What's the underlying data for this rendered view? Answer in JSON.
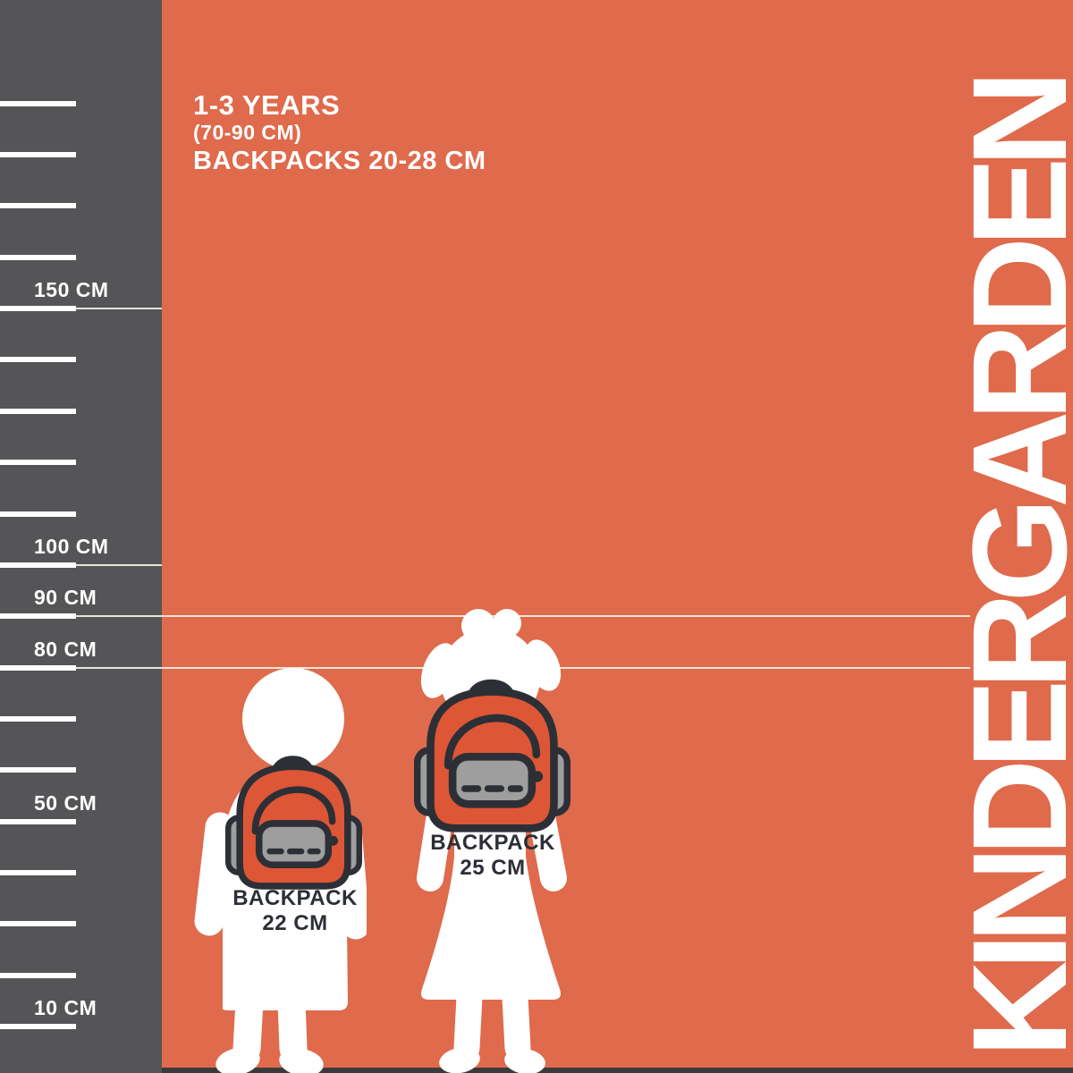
{
  "title": "KINDERGARDEN",
  "header": {
    "age_range": "1-3 YEARS",
    "height_range": "(70-90 CM)",
    "backpack_size_range": "BACKPACKS 20-28 CM"
  },
  "ruler": {
    "unit": "CM",
    "ticks": [
      {
        "value": 190,
        "label": "",
        "line": "none"
      },
      {
        "value": 180,
        "label": "",
        "line": "none"
      },
      {
        "value": 170,
        "label": "",
        "line": "none"
      },
      {
        "value": 160,
        "label": "",
        "line": "none"
      },
      {
        "value": 150,
        "label": "150 CM",
        "line": "short"
      },
      {
        "value": 140,
        "label": "",
        "line": "none"
      },
      {
        "value": 130,
        "label": "",
        "line": "none"
      },
      {
        "value": 120,
        "label": "",
        "line": "none"
      },
      {
        "value": 110,
        "label": "",
        "line": "none"
      },
      {
        "value": 100,
        "label": "100 CM",
        "line": "short"
      },
      {
        "value": 90,
        "label": "90 CM",
        "line": "full"
      },
      {
        "value": 80,
        "label": "80 CM",
        "line": "full"
      },
      {
        "value": 70,
        "label": "",
        "line": "none"
      },
      {
        "value": 60,
        "label": "",
        "line": "none"
      },
      {
        "value": 50,
        "label": "50 CM",
        "line": "none"
      },
      {
        "value": 40,
        "label": "",
        "line": "none"
      },
      {
        "value": 30,
        "label": "",
        "line": "none"
      },
      {
        "value": 20,
        "label": "",
        "line": "none"
      },
      {
        "value": 10,
        "label": "10 CM",
        "line": "none"
      }
    ]
  },
  "children": [
    {
      "type": "toddler-silhouette",
      "height_cm": 80,
      "backpack": {
        "line1": "BACKPACK",
        "line2": "22 CM"
      }
    },
    {
      "type": "girl-silhouette",
      "height_cm": 90,
      "backpack": {
        "line1": "BACKPACK",
        "line2": "25 CM"
      }
    }
  ],
  "colors": {
    "background_orange": "#df6a4c",
    "ruler_gray": "#555557",
    "backpack_orange": "#dd5636",
    "pocket_gray": "#9e9e9e",
    "outline_ink": "#2c2f35",
    "silhouette_white": "#ffffff",
    "guide_line": "#f5efe3",
    "bottom_strip": "#3a3a3c"
  }
}
